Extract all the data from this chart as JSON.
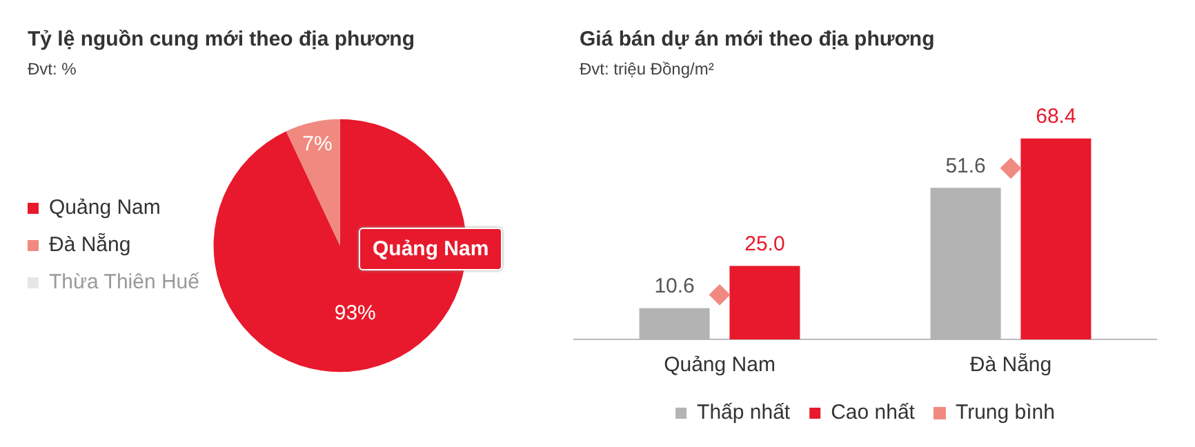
{
  "chart_data": [
    {
      "type": "pie",
      "title": "Tỷ lệ nguồn cung mới theo địa phương",
      "subtitle": "Đvt: %",
      "categories": [
        "Quảng Nam",
        "Đà Nẵng",
        "Thừa Thiên Huế"
      ],
      "values": [
        93,
        7,
        0
      ],
      "colors": [
        "#e8192c",
        "#f08a80",
        "#e6e6e6"
      ],
      "value_labels": [
        "93%",
        "7%",
        null
      ],
      "legend": "left",
      "annotations": [
        "Quảng Nam"
      ]
    },
    {
      "type": "bar",
      "title": "Giá bán dự án mới theo địa phương",
      "subtitle": "Đvt: triệu Đồng/m²",
      "categories": [
        "Quảng Nam",
        "Đà Nẵng"
      ],
      "series": [
        {
          "name": "Thấp nhất",
          "color": "#b3b3b3",
          "values": [
            10.6,
            51.6
          ],
          "value_labels": [
            "10.6",
            "51.6"
          ]
        },
        {
          "name": "Cao nhất",
          "color": "#e8192c",
          "values": [
            25.0,
            68.4
          ],
          "value_labels": [
            "25.0",
            "68.4"
          ]
        },
        {
          "name": "Trung bình",
          "type": "scatter",
          "color": "#f08a80",
          "x": [
            "Quảng Nam",
            "Đà Nẵng"
          ],
          "values": [
            15.2,
            58.3
          ]
        }
      ],
      "marker": "diamond",
      "tick_labels": "x",
      "grid": false,
      "legend": "bottom"
    }
  ]
}
